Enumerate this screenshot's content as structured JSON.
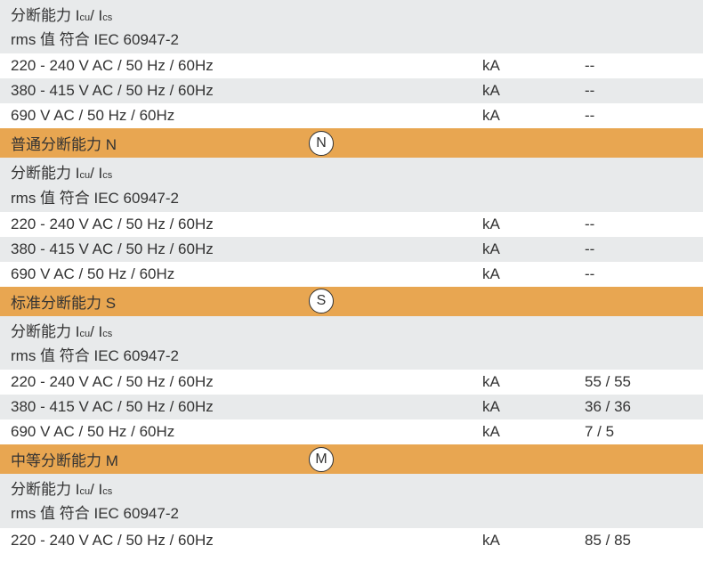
{
  "colors": {
    "row_grey": "#e8eaeb",
    "row_white": "#ffffff",
    "row_orange": "#e8a651",
    "text": "#333333",
    "circle_bg": "#ffffff",
    "circle_border": "#333333"
  },
  "top_partial": {
    "subscript_label": "分断能力 I",
    "sub1": "cu",
    "mid": " / I",
    "sub2": "cs",
    "rms_label": "rms 值 符合 IEC 60947-2"
  },
  "top_rows": [
    {
      "label": "220 - 240 V AC / 50 Hz / 60Hz",
      "unit": "kA",
      "value": "--",
      "bg": "row-white"
    },
    {
      "label": "380 - 415 V AC / 50 Hz / 60Hz",
      "unit": "kA",
      "value": "--",
      "bg": "row-grey"
    },
    {
      "label": "690 V AC / 50 Hz / 60Hz",
      "unit": "kA",
      "value": "--",
      "bg": "row-white"
    }
  ],
  "sections": [
    {
      "title": "普通分断能力 N",
      "icon_letter": "N",
      "sub_prefix": "分断能力 I",
      "sub1": "cu",
      "mid": " / I",
      "sub2": "cs",
      "rms_label": "rms 值 符合 IEC 60947-2",
      "rows": [
        {
          "label": "220 - 240 V AC / 50 Hz / 60Hz",
          "unit": "kA",
          "value": "--",
          "bg": "row-white"
        },
        {
          "label": "380 - 415 V AC / 50 Hz / 60Hz",
          "unit": "kA",
          "value": "--",
          "bg": "row-grey"
        },
        {
          "label": "690 V AC / 50 Hz / 60Hz",
          "unit": "kA",
          "value": "--",
          "bg": "row-white"
        }
      ]
    },
    {
      "title": "标准分断能力 S",
      "icon_letter": "S",
      "sub_prefix": "分断能力 I",
      "sub1": "cu",
      "mid": " / I",
      "sub2": "cs",
      "rms_label": "rms 值 符合 IEC 60947-2",
      "rows": [
        {
          "label": "220 - 240 V AC / 50 Hz / 60Hz",
          "unit": "kA",
          "value": "55 / 55",
          "bg": "row-white"
        },
        {
          "label": "380 - 415 V AC / 50 Hz / 60Hz",
          "unit": "kA",
          "value": "36 / 36",
          "bg": "row-grey"
        },
        {
          "label": "690 V AC / 50 Hz / 60Hz",
          "unit": "kA",
          "value": "7 / 5",
          "bg": "row-white"
        }
      ]
    },
    {
      "title": "中等分断能力 M",
      "icon_letter": "M",
      "sub_prefix": "分断能力 I",
      "sub1": "cu",
      "mid": " / I",
      "sub2": "cs",
      "rms_label": "rms 值 符合 IEC 60947-2",
      "rows": [
        {
          "label": "220 - 240 V AC / 50 Hz / 60Hz",
          "unit": "kA",
          "value": "85 / 85",
          "bg": "row-white"
        }
      ]
    }
  ]
}
